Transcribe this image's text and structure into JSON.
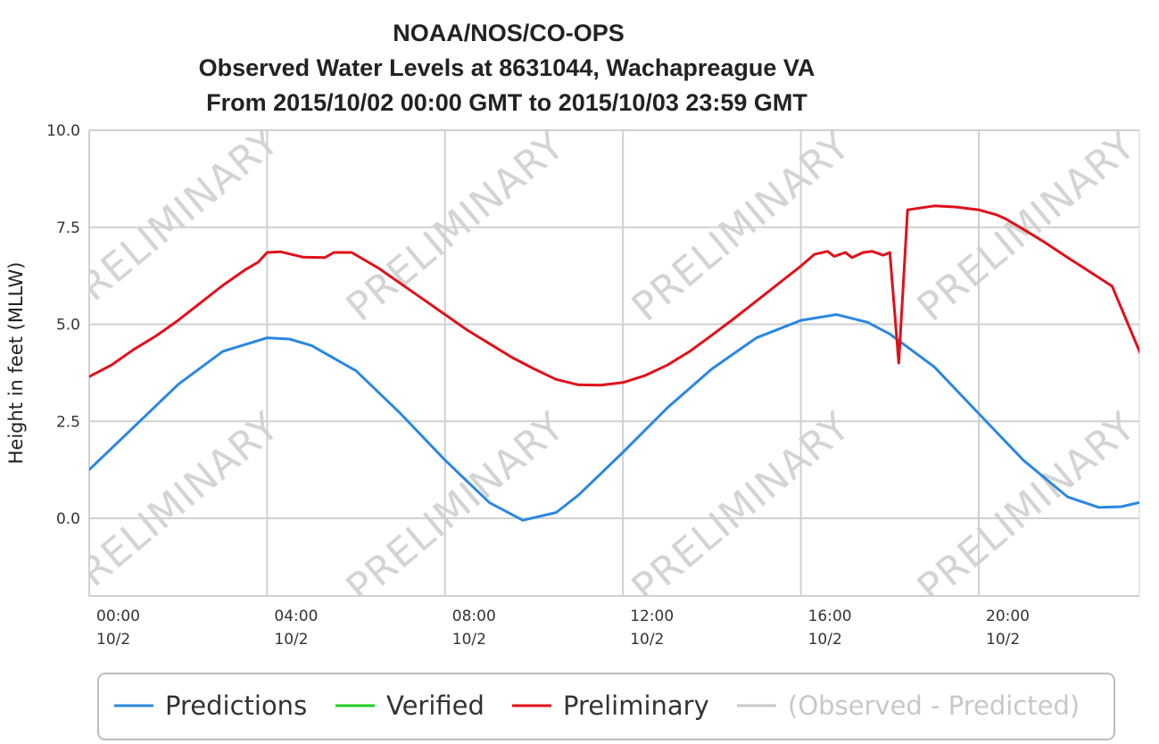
{
  "chart_data": {
    "type": "line",
    "title": "NOAA/NOS/CO-OPS",
    "subtitle_lines": [
      "Observed Water Levels at 8631044, Wachapreague VA",
      "From 2015/10/02 00:00 GMT to 2015/10/03 23:59 GMT"
    ],
    "ylabel": "Height in feet (MLLW)",
    "xlabel": "",
    "ylim": [
      -2.0,
      10.0
    ],
    "xlim_hours": [
      0,
      23.67
    ],
    "y_ticks": [
      "10.0",
      "7.5",
      "5.0",
      "2.5",
      "0.0"
    ],
    "x_ticks": [
      {
        "time": "00:00",
        "date": "10/2",
        "hour": 0
      },
      {
        "time": "04:00",
        "date": "10/2",
        "hour": 4
      },
      {
        "time": "08:00",
        "date": "10/2",
        "hour": 8
      },
      {
        "time": "12:00",
        "date": "10/2",
        "hour": 12
      },
      {
        "time": "16:00",
        "date": "10/2",
        "hour": 16
      },
      {
        "time": "20:00",
        "date": "10/2",
        "hour": 20
      }
    ],
    "grid": true,
    "legend_position": "bottom",
    "watermark": "PRELIMINARY",
    "series": [
      {
        "name": "Predictions",
        "color": "#2a87e0",
        "points": [
          [
            0,
            1.25
          ],
          [
            1,
            2.35
          ],
          [
            2,
            3.45
          ],
          [
            3,
            4.3
          ],
          [
            4,
            4.65
          ],
          [
            4.5,
            4.62
          ],
          [
            5,
            4.45
          ],
          [
            6,
            3.8
          ],
          [
            7,
            2.7
          ],
          [
            8,
            1.5
          ],
          [
            9,
            0.4
          ],
          [
            9.75,
            -0.05
          ],
          [
            10.5,
            0.15
          ],
          [
            11,
            0.6
          ],
          [
            12,
            1.7
          ],
          [
            13,
            2.85
          ],
          [
            14,
            3.85
          ],
          [
            15,
            4.65
          ],
          [
            16,
            5.1
          ],
          [
            16.8,
            5.25
          ],
          [
            17.5,
            5.05
          ],
          [
            18,
            4.75
          ],
          [
            19,
            3.9
          ],
          [
            20,
            2.7
          ],
          [
            21,
            1.5
          ],
          [
            22,
            0.55
          ],
          [
            22.7,
            0.28
          ],
          [
            23.2,
            0.3
          ],
          [
            23.67,
            0.42
          ]
        ]
      },
      {
        "name": "Verified",
        "color": "#22cc22",
        "points": []
      },
      {
        "name": "Preliminary",
        "color": "#e0101a",
        "points": [
          [
            0,
            3.65
          ],
          [
            0.5,
            3.95
          ],
          [
            1,
            4.35
          ],
          [
            1.5,
            4.7
          ],
          [
            2,
            5.1
          ],
          [
            2.5,
            5.55
          ],
          [
            3,
            6.0
          ],
          [
            3.5,
            6.4
          ],
          [
            3.8,
            6.6
          ],
          [
            4,
            6.85
          ],
          [
            4.3,
            6.87
          ],
          [
            4.8,
            6.73
          ],
          [
            5.3,
            6.72
          ],
          [
            5.5,
            6.85
          ],
          [
            5.9,
            6.85
          ],
          [
            6.5,
            6.45
          ],
          [
            7,
            6.05
          ],
          [
            7.5,
            5.65
          ],
          [
            8,
            5.25
          ],
          [
            8.5,
            4.85
          ],
          [
            9,
            4.5
          ],
          [
            9.5,
            4.15
          ],
          [
            10,
            3.85
          ],
          [
            10.5,
            3.58
          ],
          [
            11,
            3.44
          ],
          [
            11.5,
            3.43
          ],
          [
            12,
            3.5
          ],
          [
            12.5,
            3.68
          ],
          [
            13,
            3.95
          ],
          [
            13.5,
            4.3
          ],
          [
            14,
            4.72
          ],
          [
            14.5,
            5.15
          ],
          [
            15,
            5.6
          ],
          [
            15.5,
            6.05
          ],
          [
            16,
            6.5
          ],
          [
            16.3,
            6.8
          ],
          [
            16.6,
            6.88
          ],
          [
            16.75,
            6.75
          ],
          [
            17,
            6.85
          ],
          [
            17.15,
            6.72
          ],
          [
            17.4,
            6.85
          ],
          [
            17.6,
            6.88
          ],
          [
            17.85,
            6.78
          ],
          [
            18.0,
            6.85
          ],
          [
            18.2,
            4.0
          ],
          [
            18.4,
            7.95
          ],
          [
            19,
            8.05
          ],
          [
            19.5,
            8.02
          ],
          [
            20,
            7.95
          ],
          [
            20.4,
            7.82
          ],
          [
            20.6,
            7.72
          ],
          [
            21,
            7.45
          ],
          [
            21.5,
            7.1
          ],
          [
            22,
            6.72
          ],
          [
            22.5,
            6.35
          ],
          [
            23,
            5.98
          ],
          [
            23.67,
            4.15
          ]
        ]
      },
      {
        "name": "(Observed - Predicted)",
        "color": "#c8c8c8",
        "points": []
      }
    ]
  },
  "legend": [
    {
      "label": "Predictions",
      "color": "#2a87e0",
      "text_color": "#333333"
    },
    {
      "label": "Verified",
      "color": "#22cc22",
      "text_color": "#333333"
    },
    {
      "label": "Preliminary",
      "color": "#e0101a",
      "text_color": "#333333"
    },
    {
      "label": "(Observed - Predicted)",
      "color": "#c8c8c8",
      "text_color": "#c8c8c8"
    }
  ]
}
